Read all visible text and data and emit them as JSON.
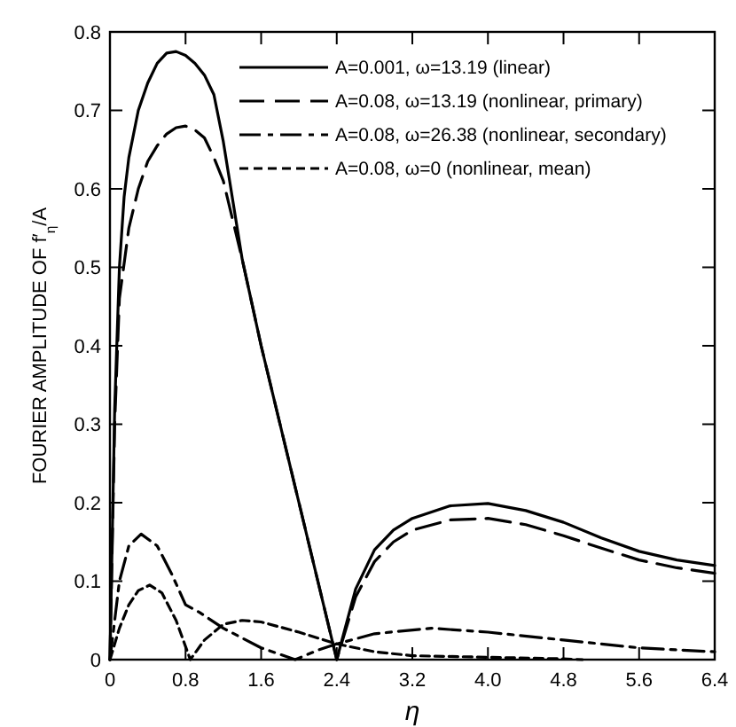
{
  "chart_data": {
    "type": "line",
    "xlabel": "η",
    "ylabel": "FOURIER AMPLITUDE OF f′$_{η}$/A",
    "xlim": [
      0,
      6.4
    ],
    "xticks": [
      0,
      0.8,
      1.6,
      2.4,
      3.2,
      {
        "value": 4,
        "label": "4.0"
      },
      4.8,
      5.6,
      6.4
    ],
    "ylim": [
      0,
      0.8
    ],
    "yticks": [
      0,
      0.1,
      0.2,
      0.3,
      0.4,
      0.5,
      0.6,
      0.7,
      0.8
    ],
    "grid": false,
    "legend": "top right",
    "series": [
      {
        "name": "A=0.001, ω=13.19 (linear)",
        "color": "#000000",
        "line_style": "solid",
        "x": [
          0,
          0.05,
          0.1,
          0.15,
          0.2,
          0.3,
          0.4,
          0.5,
          0.6,
          0.7,
          0.8,
          0.9,
          1.0,
          1.1,
          1.2,
          1.4,
          1.6,
          1.8,
          2.0,
          2.2,
          2.4,
          2.6,
          2.8,
          3.0,
          3.2,
          3.6,
          4.0,
          4.4,
          4.8,
          5.2,
          5.6,
          6.0,
          6.4
        ],
        "values": [
          0,
          0.32,
          0.5,
          0.59,
          0.64,
          0.7,
          0.735,
          0.76,
          0.773,
          0.775,
          0.77,
          0.76,
          0.745,
          0.72,
          0.66,
          0.51,
          0.4,
          0.3,
          0.2,
          0.1,
          0,
          0.09,
          0.14,
          0.165,
          0.18,
          0.196,
          0.199,
          0.19,
          0.175,
          0.155,
          0.138,
          0.127,
          0.12
        ]
      },
      {
        "name": "A=0.08, ω=13.19 (nonlinear, primary)",
        "color": "#000000",
        "line_style": "dashed",
        "x": [
          0,
          0.05,
          0.1,
          0.2,
          0.3,
          0.4,
          0.5,
          0.6,
          0.7,
          0.8,
          0.9,
          1.0,
          1.1,
          1.2,
          1.4,
          1.6,
          1.8,
          2.0,
          2.2,
          2.4,
          2.6,
          2.8,
          3.0,
          3.2,
          3.6,
          4.0,
          4.4,
          4.8,
          5.2,
          5.6,
          6.0,
          6.4
        ],
        "values": [
          0,
          0.3,
          0.46,
          0.55,
          0.6,
          0.635,
          0.655,
          0.67,
          0.678,
          0.68,
          0.675,
          0.665,
          0.64,
          0.61,
          0.51,
          0.4,
          0.3,
          0.2,
          0.1,
          0,
          0.08,
          0.125,
          0.15,
          0.165,
          0.178,
          0.18,
          0.172,
          0.158,
          0.142,
          0.127,
          0.117,
          0.11
        ]
      },
      {
        "name": "A=0.08, ω=26.38 (nonlinear, secondary)",
        "color": "#000000",
        "line_style": "dashdot",
        "x": [
          0,
          0.1,
          0.2,
          0.33,
          0.5,
          0.65,
          0.8,
          0.95,
          1.2,
          1.6,
          1.96,
          2.2,
          2.4,
          2.8,
          3.4,
          4.0,
          4.8,
          5.6,
          6.4
        ],
        "values": [
          0,
          0.1,
          0.145,
          0.16,
          0.145,
          0.11,
          0.07,
          0.06,
          0.04,
          0.015,
          0,
          0.012,
          0.02,
          0.033,
          0.04,
          0.035,
          0.025,
          0.015,
          0.01
        ]
      },
      {
        "name": "A=0.08, ω=0 (nonlinear, mean)",
        "color": "#000000",
        "line_style": "dotted",
        "x": [
          0,
          0.1,
          0.2,
          0.3,
          0.42,
          0.55,
          0.7,
          0.85,
          1.0,
          1.2,
          1.4,
          1.6,
          2.0,
          2.4,
          2.8,
          3.2,
          4.0,
          4.8,
          5.0
        ],
        "values": [
          0,
          0.04,
          0.07,
          0.088,
          0.095,
          0.085,
          0.05,
          0,
          0.025,
          0.045,
          0.05,
          0.048,
          0.035,
          0.02,
          0.01,
          0.005,
          0.003,
          0.001,
          0
        ]
      }
    ]
  }
}
